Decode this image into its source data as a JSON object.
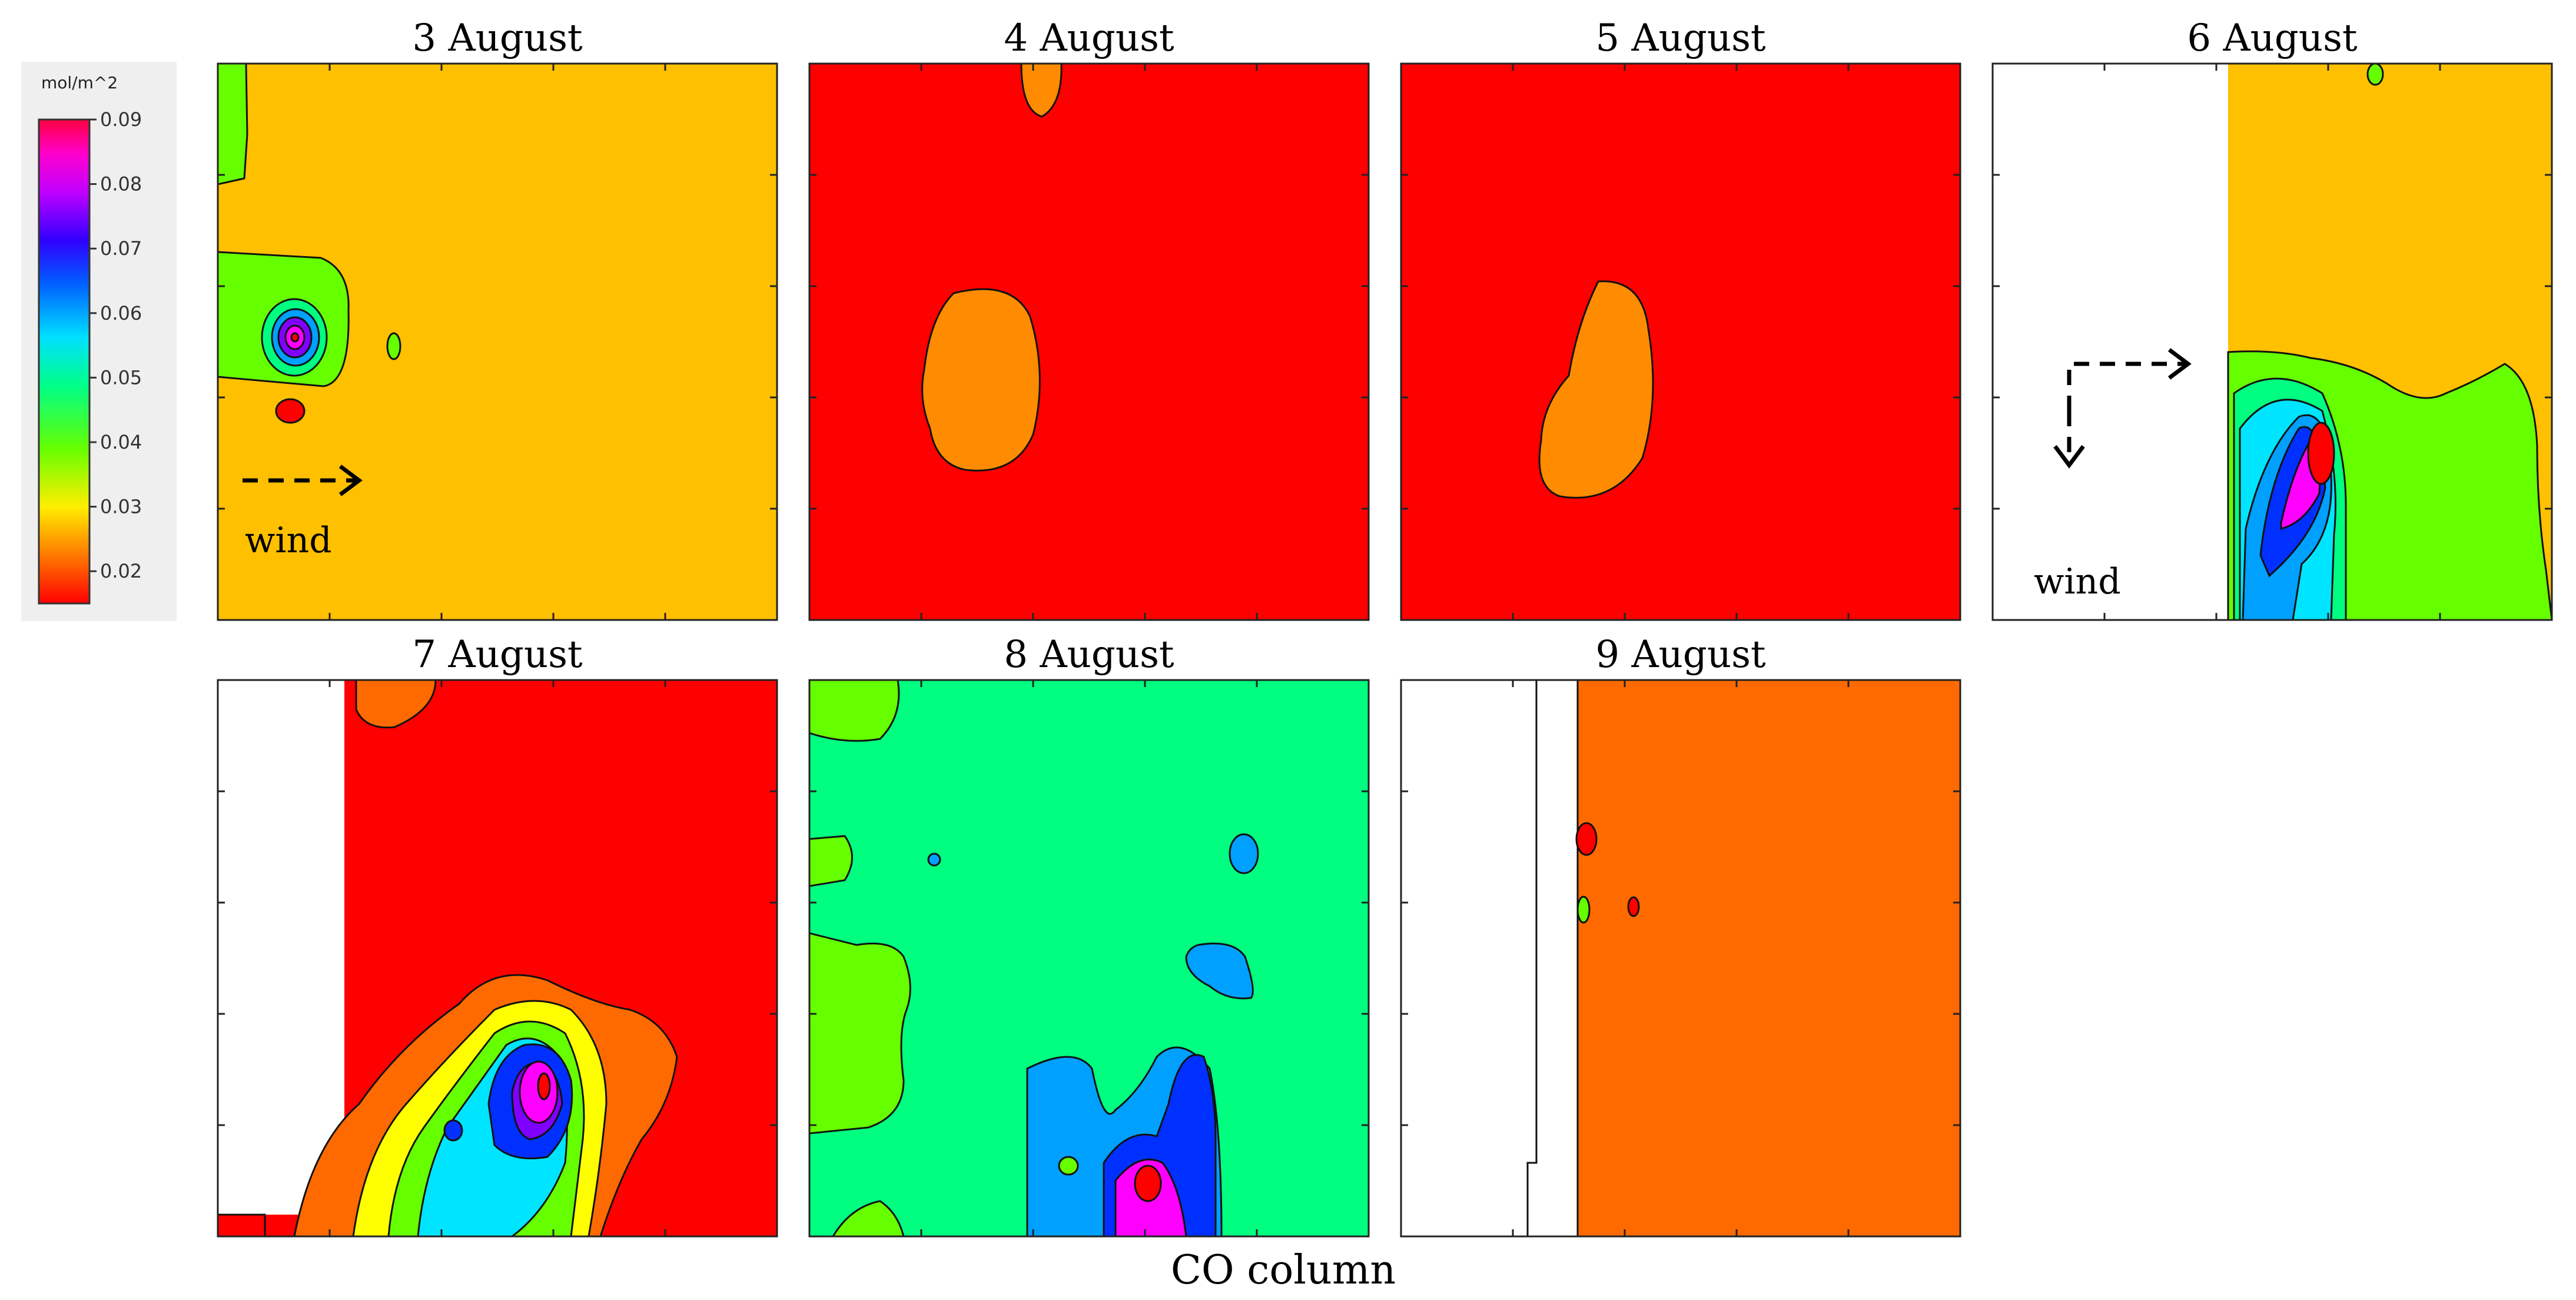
{
  "chart_data": {
    "type": "heatmap",
    "xlabel": "CO column",
    "colorbar": {
      "unit": "mol/m^2",
      "ticks": [
        "0.09",
        "0.08",
        "0.07",
        "0.06",
        "0.05",
        "0.04",
        "0.03",
        "0.02"
      ],
      "range": [
        0.015,
        0.09
      ],
      "colors": [
        "#ff0000",
        "#ff6a00",
        "#ffc000",
        "#ffff00",
        "#66ff00",
        "#00ff80",
        "#00e5ff",
        "#00a0ff",
        "#0030ff",
        "#8000ff",
        "#ff00ff",
        "#ff0060"
      ]
    },
    "panels": [
      {
        "title": "3 August",
        "background": 0.025,
        "wind": "east",
        "wind_label": "wind"
      },
      {
        "title": "4 August",
        "background": 0.017
      },
      {
        "title": "5 August",
        "background": 0.017
      },
      {
        "title": "6 August",
        "background": 0.025,
        "wind": "east-south",
        "wind_label": "wind"
      },
      {
        "title": "7 August",
        "background": 0.017
      },
      {
        "title": "8 August",
        "background": 0.045
      },
      {
        "title": "9 August",
        "background": 0.021
      }
    ]
  }
}
